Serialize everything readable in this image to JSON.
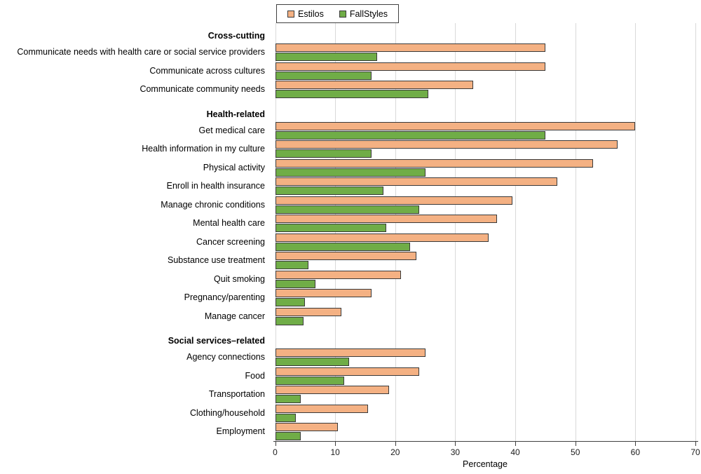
{
  "legend": {
    "items": [
      {
        "label": "Estilos",
        "color": "#F4B183"
      },
      {
        "label": "FallStyles",
        "color": "#70AD47"
      }
    ]
  },
  "chart_data": {
    "type": "bar",
    "orientation": "horizontal",
    "title": "",
    "xlabel": "Percentage",
    "xlim": [
      0,
      70
    ],
    "x_ticks": [
      0,
      10,
      20,
      30,
      40,
      50,
      60,
      70
    ],
    "grid": "vertical-only",
    "legend_position": "top-center",
    "series_names": [
      "Estilos",
      "FallStyles"
    ],
    "sections": [
      {
        "header": "Cross-cutting",
        "rows": [
          {
            "label": "Communicate needs with health care or social service providers",
            "values": {
              "Estilos": 45,
              "FallStyles": 17
            }
          },
          {
            "label": "Communicate across cultures",
            "values": {
              "Estilos": 45,
              "FallStyles": 16
            }
          },
          {
            "label": "Communicate community needs",
            "values": {
              "Estilos": 33,
              "FallStyles": 25.5
            }
          }
        ]
      },
      {
        "header": "Health-related",
        "rows": [
          {
            "label": "Get medical care",
            "values": {
              "Estilos": 60,
              "FallStyles": 45
            }
          },
          {
            "label": "Health information in my culture",
            "values": {
              "Estilos": 57,
              "FallStyles": 16
            }
          },
          {
            "label": "Physical activity",
            "values": {
              "Estilos": 53,
              "FallStyles": 25
            }
          },
          {
            "label": "Enroll in health insurance",
            "values": {
              "Estilos": 47,
              "FallStyles": 18
            }
          },
          {
            "label": "Manage chronic conditions",
            "values": {
              "Estilos": 39.5,
              "FallStyles": 24
            }
          },
          {
            "label": "Mental health care",
            "values": {
              "Estilos": 37,
              "FallStyles": 18.5
            }
          },
          {
            "label": "Cancer screening",
            "values": {
              "Estilos": 35.5,
              "FallStyles": 22.5
            }
          },
          {
            "label": "Substance use treatment",
            "values": {
              "Estilos": 23.5,
              "FallStyles": 5.5
            }
          },
          {
            "label": "Quit smoking",
            "values": {
              "Estilos": 21,
              "FallStyles": 6.7
            }
          },
          {
            "label": "Pregnancy/parenting",
            "values": {
              "Estilos": 16,
              "FallStyles": 5
            }
          },
          {
            "label": "Manage cancer",
            "values": {
              "Estilos": 11,
              "FallStyles": 4.7
            }
          }
        ]
      },
      {
        "header": "Social services–related",
        "rows": [
          {
            "label": "Agency connections",
            "values": {
              "Estilos": 25,
              "FallStyles": 12.3
            }
          },
          {
            "label": "Food",
            "values": {
              "Estilos": 24,
              "FallStyles": 11.5
            }
          },
          {
            "label": "Transportation",
            "values": {
              "Estilos": 19,
              "FallStyles": 4.3
            }
          },
          {
            "label": "Clothing/household",
            "values": {
              "Estilos": 15.5,
              "FallStyles": 3.5
            }
          },
          {
            "label": "Employment",
            "values": {
              "Estilos": 10.5,
              "FallStyles": 4.3
            }
          }
        ]
      }
    ],
    "colors": {
      "Estilos": "#F4B183",
      "FallStyles": "#70AD47",
      "bar_border": "#3a3a3a",
      "gridline": "#d9d9d9",
      "axis": "#404040",
      "text": "#000000"
    }
  }
}
